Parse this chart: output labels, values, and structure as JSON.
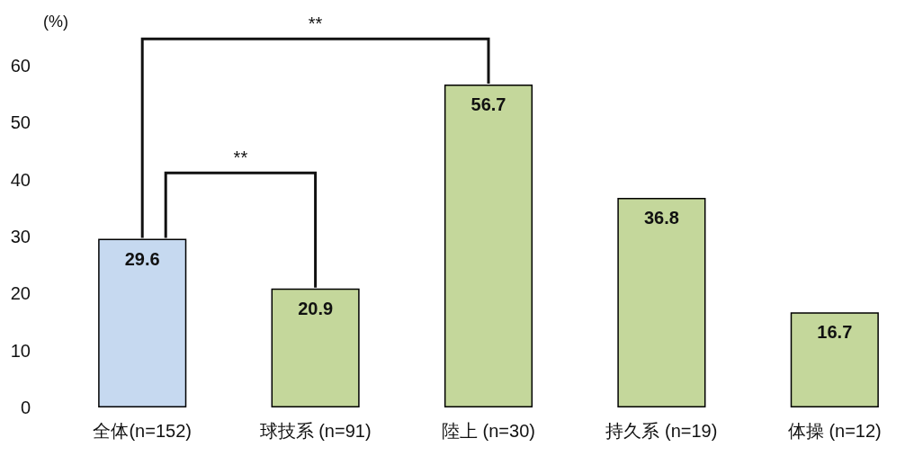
{
  "chart_data": {
    "type": "bar",
    "ylabel": "(%)",
    "categories": [
      "全体(n=152)",
      "球技系 (n=91)",
      "陸上 (n=30)",
      "持久系 (n=19)",
      "体操 (n=12)"
    ],
    "values": [
      29.6,
      20.9,
      56.7,
      36.8,
      16.7
    ],
    "colors": [
      "#c6d9f0",
      "#c4d79b",
      "#c4d79b",
      "#c4d79b",
      "#c4d79b"
    ],
    "ylim": [
      0,
      60
    ],
    "yticks": [
      0,
      10,
      20,
      30,
      40,
      50,
      60
    ],
    "grid": false,
    "data_labels": true,
    "annotations": [
      "**",
      "**"
    ]
  }
}
